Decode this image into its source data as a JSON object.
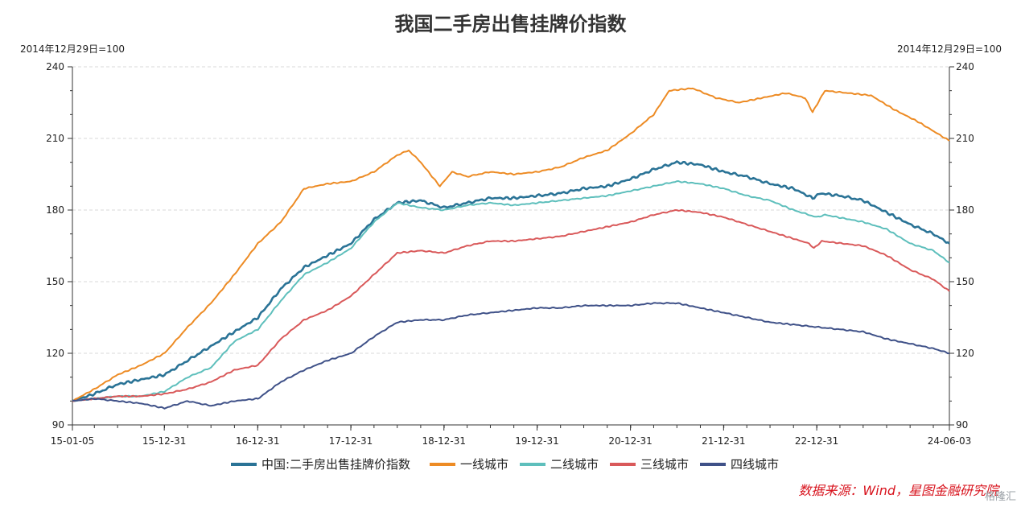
{
  "chart_data": {
    "type": "line",
    "title": "我国二手房出售挂牌价指数",
    "y_unit_left": "2014年12月29日=100",
    "y_unit_right": "2014年12月29日=100",
    "ylim": [
      90,
      240
    ],
    "yticks": [
      90,
      120,
      150,
      180,
      210,
      240
    ],
    "xlim": [
      "2015-01-05",
      "2024-06-03"
    ],
    "x_tick_labels": [
      {
        "date": "2015-01-05",
        "label": "15-01-05"
      },
      {
        "date": "2015-12-31",
        "label": "15-12-31"
      },
      {
        "date": "2016-12-31",
        "label": "16-12-31"
      },
      {
        "date": "2017-12-31",
        "label": "17-12-31"
      },
      {
        "date": "2018-12-31",
        "label": "18-12-31"
      },
      {
        "date": "2019-12-31",
        "label": "19-12-31"
      },
      {
        "date": "2020-12-31",
        "label": "20-12-31"
      },
      {
        "date": "2021-12-31",
        "label": "21-12-31"
      },
      {
        "date": "2022-12-31",
        "label": "22-12-31"
      },
      {
        "date": "2024-06-03",
        "label": "24-06-03"
      }
    ],
    "grid": "horizontal-dashed",
    "legend_position": "bottom",
    "series": [
      {
        "name": "中国:二手房出售挂牌价指数",
        "color": "#2a7396",
        "points": [
          [
            "2015-01-05",
            100
          ],
          [
            "2015-04-01",
            103
          ],
          [
            "2015-07-01",
            107
          ],
          [
            "2015-10-01",
            109
          ],
          [
            "2016-01-01",
            111
          ],
          [
            "2016-04-01",
            117
          ],
          [
            "2016-07-01",
            123
          ],
          [
            "2016-10-01",
            129
          ],
          [
            "2017-01-01",
            135
          ],
          [
            "2017-04-01",
            147
          ],
          [
            "2017-07-01",
            156
          ],
          [
            "2017-10-01",
            161
          ],
          [
            "2018-01-01",
            166
          ],
          [
            "2018-04-01",
            176
          ],
          [
            "2018-07-01",
            183
          ],
          [
            "2018-10-01",
            184
          ],
          [
            "2018-12-31",
            181
          ],
          [
            "2019-04-01",
            183
          ],
          [
            "2019-07-01",
            185
          ],
          [
            "2019-10-01",
            185
          ],
          [
            "2020-01-01",
            186
          ],
          [
            "2020-04-01",
            187
          ],
          [
            "2020-07-01",
            189
          ],
          [
            "2020-10-01",
            190
          ],
          [
            "2021-01-01",
            193
          ],
          [
            "2021-04-01",
            197
          ],
          [
            "2021-07-01",
            200
          ],
          [
            "2021-10-01",
            199
          ],
          [
            "2022-01-01",
            196
          ],
          [
            "2022-04-01",
            194
          ],
          [
            "2022-07-01",
            191
          ],
          [
            "2022-10-01",
            189
          ],
          [
            "2022-12-15",
            185
          ],
          [
            "2023-01-15",
            187
          ],
          [
            "2023-04-01",
            186
          ],
          [
            "2023-07-01",
            184
          ],
          [
            "2023-10-01",
            179
          ],
          [
            "2024-01-01",
            174
          ],
          [
            "2024-04-01",
            170
          ],
          [
            "2024-06-03",
            166
          ]
        ]
      },
      {
        "name": "一线城市",
        "color": "#ed8b24",
        "points": [
          [
            "2015-01-05",
            100
          ],
          [
            "2015-04-01",
            105
          ],
          [
            "2015-07-01",
            111
          ],
          [
            "2015-10-01",
            115
          ],
          [
            "2016-01-01",
            120
          ],
          [
            "2016-04-01",
            131
          ],
          [
            "2016-07-01",
            141
          ],
          [
            "2016-10-01",
            153
          ],
          [
            "2017-01-01",
            166
          ],
          [
            "2017-04-01",
            175
          ],
          [
            "2017-07-01",
            189
          ],
          [
            "2017-10-01",
            191
          ],
          [
            "2018-01-01",
            192
          ],
          [
            "2018-04-01",
            196
          ],
          [
            "2018-07-01",
            203
          ],
          [
            "2018-08-15",
            205
          ],
          [
            "2018-10-01",
            200
          ],
          [
            "2018-12-15",
            190
          ],
          [
            "2019-02-01",
            196
          ],
          [
            "2019-04-01",
            194
          ],
          [
            "2019-07-01",
            196
          ],
          [
            "2019-10-01",
            195
          ],
          [
            "2020-01-01",
            196
          ],
          [
            "2020-04-01",
            198
          ],
          [
            "2020-07-01",
            202
          ],
          [
            "2020-10-01",
            205
          ],
          [
            "2021-01-01",
            212
          ],
          [
            "2021-04-01",
            220
          ],
          [
            "2021-06-01",
            230
          ],
          [
            "2021-09-01",
            231
          ],
          [
            "2021-12-01",
            227
          ],
          [
            "2022-03-01",
            225
          ],
          [
            "2022-06-01",
            227
          ],
          [
            "2022-09-01",
            229
          ],
          [
            "2022-11-15",
            227
          ],
          [
            "2022-12-15",
            221
          ],
          [
            "2023-02-01",
            230
          ],
          [
            "2023-05-01",
            229
          ],
          [
            "2023-08-01",
            228
          ],
          [
            "2023-11-01",
            222
          ],
          [
            "2024-02-01",
            217
          ],
          [
            "2024-06-03",
            209
          ]
        ]
      },
      {
        "name": "二线城市",
        "color": "#5ebfbc",
        "points": [
          [
            "2015-01-05",
            100
          ],
          [
            "2015-04-01",
            101
          ],
          [
            "2015-07-01",
            102
          ],
          [
            "2015-10-01",
            102
          ],
          [
            "2016-01-01",
            104
          ],
          [
            "2016-04-01",
            110
          ],
          [
            "2016-07-01",
            114
          ],
          [
            "2016-10-01",
            125
          ],
          [
            "2017-01-01",
            130
          ],
          [
            "2017-04-01",
            142
          ],
          [
            "2017-07-01",
            153
          ],
          [
            "2017-10-01",
            158
          ],
          [
            "2018-01-01",
            164
          ],
          [
            "2018-04-01",
            175
          ],
          [
            "2018-07-01",
            183
          ],
          [
            "2018-10-01",
            181
          ],
          [
            "2018-12-31",
            180
          ],
          [
            "2019-04-01",
            182
          ],
          [
            "2019-07-01",
            183
          ],
          [
            "2019-10-01",
            182
          ],
          [
            "2020-01-01",
            183
          ],
          [
            "2020-04-01",
            184
          ],
          [
            "2020-07-01",
            185
          ],
          [
            "2020-10-01",
            186
          ],
          [
            "2021-01-01",
            188
          ],
          [
            "2021-04-01",
            190
          ],
          [
            "2021-07-01",
            192
          ],
          [
            "2021-10-01",
            191
          ],
          [
            "2022-01-01",
            189
          ],
          [
            "2022-04-01",
            186
          ],
          [
            "2022-07-01",
            184
          ],
          [
            "2022-10-01",
            180
          ],
          [
            "2022-12-31",
            177
          ],
          [
            "2023-02-01",
            178
          ],
          [
            "2023-07-01",
            175
          ],
          [
            "2023-10-01",
            172
          ],
          [
            "2024-01-01",
            166
          ],
          [
            "2024-04-01",
            163
          ],
          [
            "2024-06-03",
            158
          ]
        ]
      },
      {
        "name": "三线城市",
        "color": "#d9595a",
        "points": [
          [
            "2015-01-05",
            100
          ],
          [
            "2015-04-01",
            101
          ],
          [
            "2015-07-01",
            102
          ],
          [
            "2015-10-01",
            102
          ],
          [
            "2016-01-01",
            103
          ],
          [
            "2016-04-01",
            105
          ],
          [
            "2016-07-01",
            108
          ],
          [
            "2016-10-01",
            113
          ],
          [
            "2017-01-01",
            115
          ],
          [
            "2017-04-01",
            126
          ],
          [
            "2017-07-01",
            134
          ],
          [
            "2017-10-01",
            138
          ],
          [
            "2018-01-01",
            144
          ],
          [
            "2018-04-01",
            153
          ],
          [
            "2018-07-01",
            162
          ],
          [
            "2018-10-01",
            163
          ],
          [
            "2018-12-31",
            162
          ],
          [
            "2019-04-01",
            165
          ],
          [
            "2019-07-01",
            167
          ],
          [
            "2019-10-01",
            167
          ],
          [
            "2020-01-01",
            168
          ],
          [
            "2020-04-01",
            169
          ],
          [
            "2020-07-01",
            171
          ],
          [
            "2020-10-01",
            173
          ],
          [
            "2021-01-01",
            175
          ],
          [
            "2021-04-01",
            178
          ],
          [
            "2021-07-01",
            180
          ],
          [
            "2021-10-01",
            179
          ],
          [
            "2022-01-01",
            177
          ],
          [
            "2022-04-01",
            174
          ],
          [
            "2022-07-01",
            171
          ],
          [
            "2022-10-01",
            168
          ],
          [
            "2022-12-01",
            166
          ],
          [
            "2022-12-20",
            164
          ],
          [
            "2023-01-20",
            167
          ],
          [
            "2023-07-01",
            165
          ],
          [
            "2023-10-01",
            161
          ],
          [
            "2024-01-01",
            155
          ],
          [
            "2024-04-01",
            151
          ],
          [
            "2024-06-03",
            146
          ]
        ]
      },
      {
        "name": "四线城市",
        "color": "#3f5188",
        "points": [
          [
            "2015-01-05",
            100
          ],
          [
            "2015-04-01",
            101
          ],
          [
            "2015-07-01",
            100
          ],
          [
            "2015-10-01",
            99
          ],
          [
            "2016-01-01",
            97
          ],
          [
            "2016-04-01",
            100
          ],
          [
            "2016-07-01",
            98
          ],
          [
            "2016-10-01",
            100
          ],
          [
            "2017-01-01",
            101
          ],
          [
            "2017-04-01",
            108
          ],
          [
            "2017-07-01",
            113
          ],
          [
            "2017-10-01",
            117
          ],
          [
            "2018-01-01",
            120
          ],
          [
            "2018-04-01",
            127
          ],
          [
            "2018-07-01",
            133
          ],
          [
            "2018-10-01",
            134
          ],
          [
            "2018-12-31",
            134
          ],
          [
            "2019-04-01",
            136
          ],
          [
            "2019-07-01",
            137
          ],
          [
            "2019-10-01",
            138
          ],
          [
            "2020-01-01",
            139
          ],
          [
            "2020-04-01",
            139
          ],
          [
            "2020-07-01",
            140
          ],
          [
            "2020-10-01",
            140
          ],
          [
            "2021-01-01",
            140
          ],
          [
            "2021-04-01",
            141
          ],
          [
            "2021-07-01",
            141
          ],
          [
            "2021-10-01",
            139
          ],
          [
            "2022-01-01",
            137
          ],
          [
            "2022-04-01",
            135
          ],
          [
            "2022-07-01",
            133
          ],
          [
            "2022-10-01",
            132
          ],
          [
            "2022-12-31",
            131
          ],
          [
            "2023-04-01",
            130
          ],
          [
            "2023-07-01",
            129
          ],
          [
            "2023-10-01",
            126
          ],
          [
            "2024-01-01",
            124
          ],
          [
            "2024-04-01",
            122
          ],
          [
            "2024-06-03",
            120
          ]
        ]
      }
    ]
  },
  "source_note": "数据来源：Wind，星图金融研究院",
  "watermark": "格隆汇"
}
